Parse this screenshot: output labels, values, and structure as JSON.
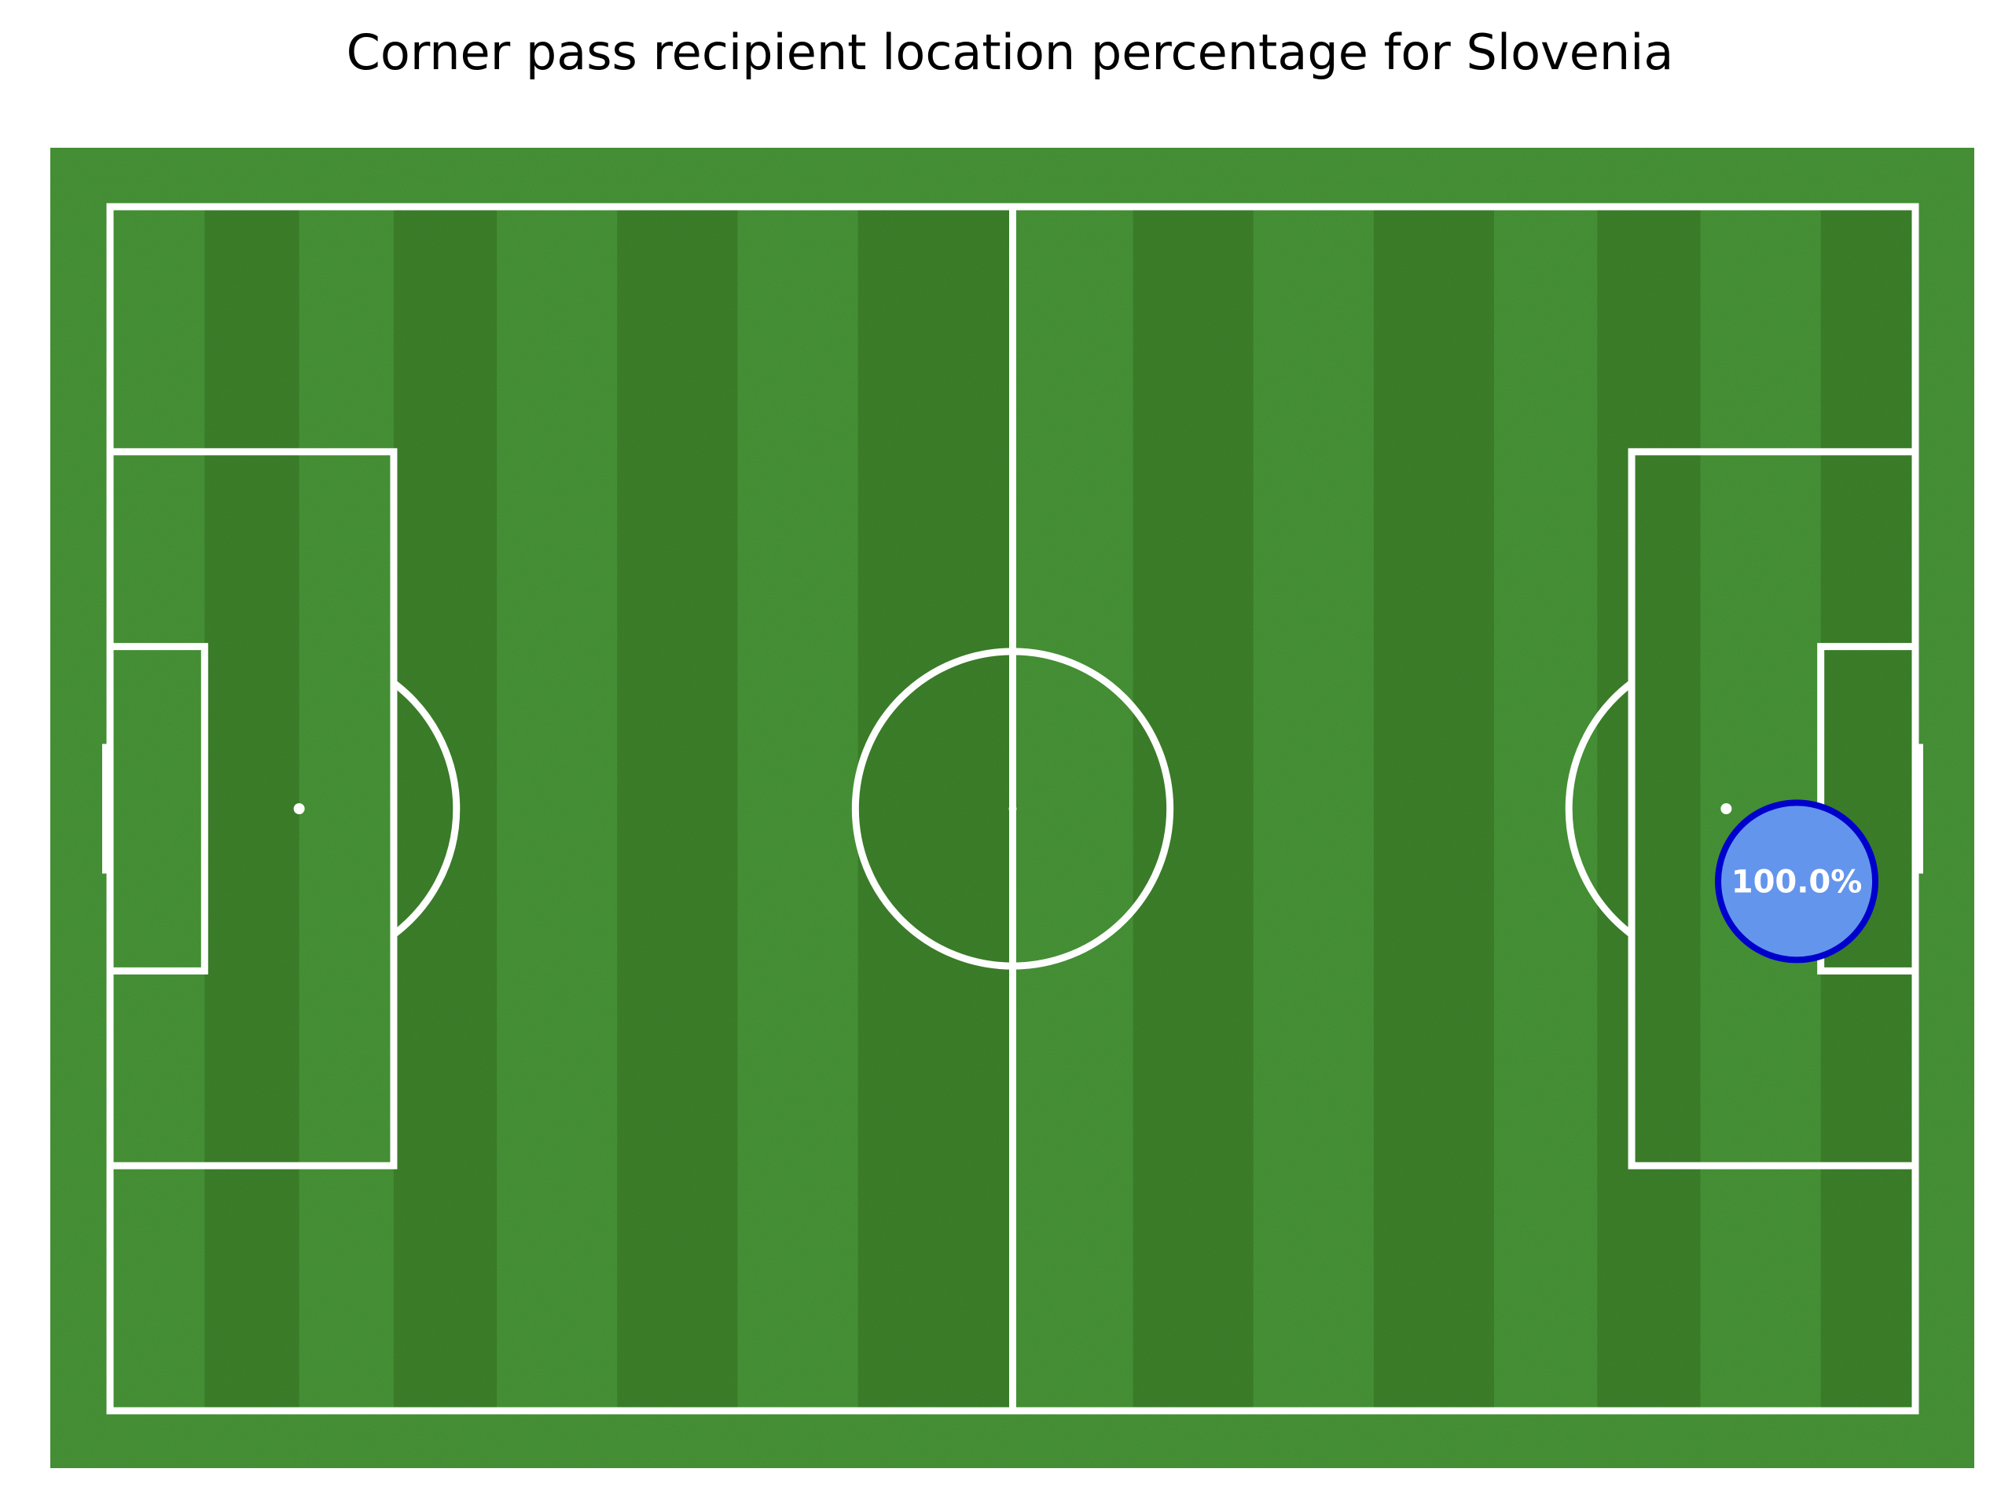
{
  "chart_data": {
    "type": "scatter",
    "title": "Corner pass recipient location percentage for Slovenia",
    "pitch": {
      "length": 105,
      "width": 68,
      "grass_light": "#4a9a39",
      "grass_dark": "#3f862c",
      "line_color": "#ffffff"
    },
    "points": [
      {
        "x": 98.1,
        "y": 29.9,
        "value": 100.0,
        "label": "100.0%"
      }
    ],
    "marker": {
      "fill": "#6495ed",
      "edge": "#0000cd",
      "text_color": "#ffffff"
    }
  }
}
